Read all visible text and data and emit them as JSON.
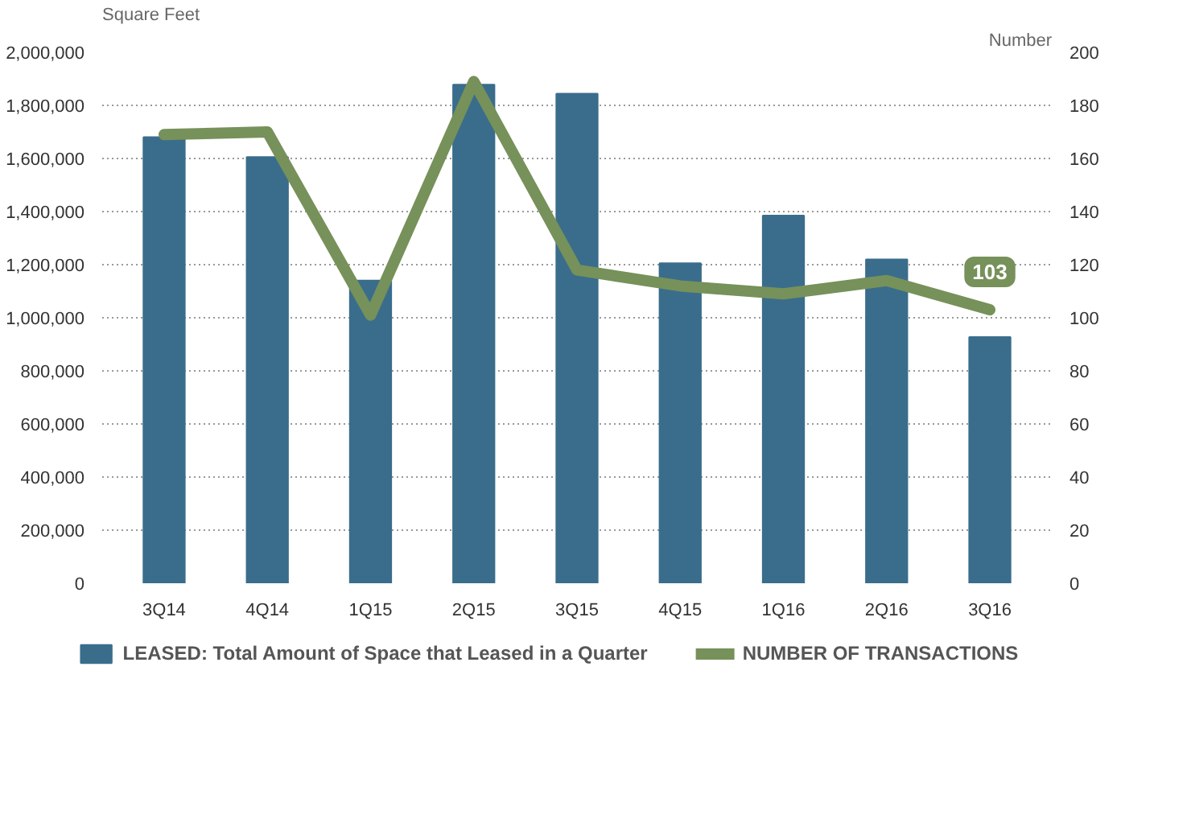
{
  "chart_data": {
    "type": "bar",
    "ylabel": "Square Feet",
    "y2label": "Number",
    "categories": [
      "3Q14",
      "4Q14",
      "1Q15",
      "2Q15",
      "3Q15",
      "4Q15",
      "1Q16",
      "2Q16",
      "3Q16"
    ],
    "series": [
      {
        "name": "LEASED: Total Amount of Space that Leased in a Quarter",
        "color": "#3a6d8c",
        "values": [
          1680000,
          1605000,
          1140000,
          1878000,
          1844000,
          1205000,
          1385000,
          1220000,
          927000
        ]
      },
      {
        "name": "NUMBER OF TRANSACTIONS",
        "type": "line",
        "axis": "y2",
        "color": "#76915a",
        "values": [
          169,
          170,
          101,
          189,
          118,
          112,
          109,
          114,
          103
        ],
        "value_labels": [
          null,
          null,
          null,
          null,
          null,
          null,
          null,
          null,
          "103"
        ]
      }
    ],
    "ylim": [
      0,
      2000000
    ],
    "yticks": [
      {
        "value": 0,
        "label": "0"
      },
      {
        "value": 200000,
        "label": "200,000"
      },
      {
        "value": 400000,
        "label": "400,000"
      },
      {
        "value": 600000,
        "label": "600,000"
      },
      {
        "value": 800000,
        "label": "800,000"
      },
      {
        "value": 1000000,
        "label": "1,000,000"
      },
      {
        "value": 1200000,
        "label": "1,200,000"
      },
      {
        "value": 1400000,
        "label": "1,400,000"
      },
      {
        "value": 1600000,
        "label": "1,600,000"
      },
      {
        "value": 1800000,
        "label": "1,800,000"
      },
      {
        "value": 2000000,
        "label": "2,000,000"
      }
    ],
    "y2lim": [
      0,
      200
    ],
    "y2ticks": [
      0,
      20,
      40,
      60,
      80,
      100,
      120,
      140,
      160,
      180,
      200
    ],
    "grid": "y",
    "legend": "bottom",
    "marker": "none",
    "line_style": "solid"
  }
}
